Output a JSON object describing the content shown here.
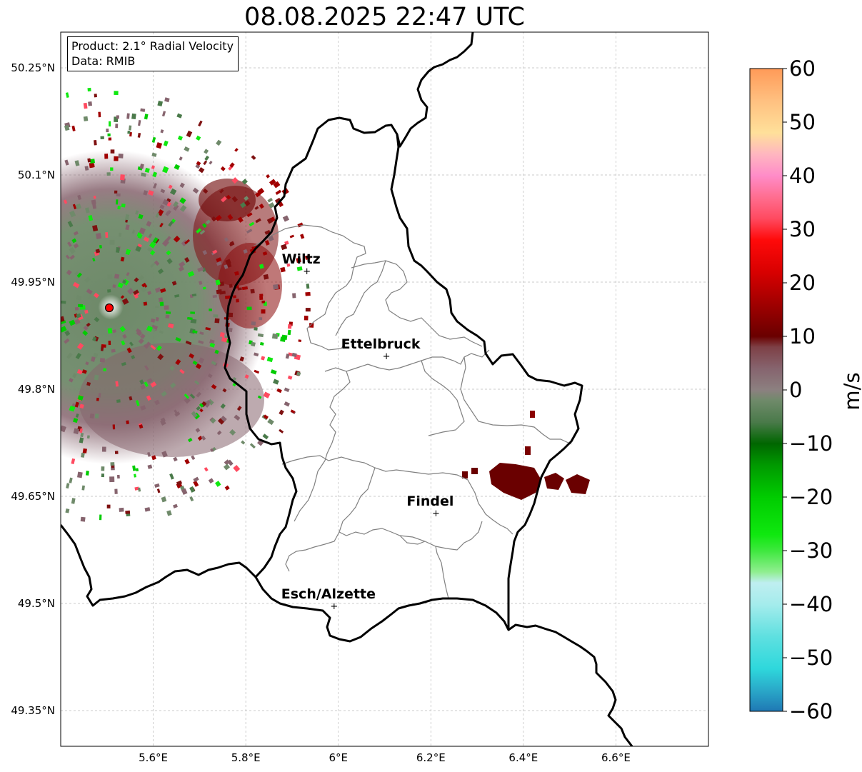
{
  "title": "08.08.2025 22:47 UTC",
  "info": {
    "product": "Product: 2.1° Radial Velocity",
    "data": "Data: RMIB"
  },
  "map": {
    "lon_range": [
      5.4,
      6.8
    ],
    "lat_range": [
      49.3,
      50.3
    ],
    "lon_ticks": [
      {
        "value": 5.6,
        "label": "5.6°E"
      },
      {
        "value": 5.8,
        "label": "5.8°E"
      },
      {
        "value": 6.0,
        "label": "6°E"
      },
      {
        "value": 6.2,
        "label": "6.2°E"
      },
      {
        "value": 6.4,
        "label": "6.4°E"
      },
      {
        "value": 6.6,
        "label": "6.6°E"
      }
    ],
    "lat_ticks": [
      {
        "value": 50.25,
        "label": "50.25°N"
      },
      {
        "value": 50.1,
        "label": "50.1°N"
      },
      {
        "value": 49.95,
        "label": "49.95°N"
      },
      {
        "value": 49.8,
        "label": "49.8°N"
      },
      {
        "value": 49.65,
        "label": "49.65°N"
      },
      {
        "value": 49.5,
        "label": "49.5°N"
      },
      {
        "value": 49.35,
        "label": "49.35°N"
      }
    ],
    "radar_site": {
      "lon": 5.505,
      "lat": 49.914
    },
    "cities": [
      {
        "name": "Wiltz",
        "lon": 5.932,
        "lat": 49.966
      },
      {
        "name": "Ettelbruck",
        "lon": 6.104,
        "lat": 49.847
      },
      {
        "name": "Findel",
        "lon": 6.211,
        "lat": 49.627
      },
      {
        "name": "Esch/Alzette",
        "lon": 5.991,
        "lat": 49.497
      }
    ],
    "border_color": "#000000",
    "canton_color": "#808080",
    "grid_color": "#bbbbbb"
  },
  "colorbar": {
    "label": "m/s",
    "min": -60,
    "max": 60,
    "ticks": [
      {
        "value": 60,
        "label": "60"
      },
      {
        "value": 50,
        "label": "50"
      },
      {
        "value": 40,
        "label": "40"
      },
      {
        "value": 30,
        "label": "30"
      },
      {
        "value": 20,
        "label": "20"
      },
      {
        "value": 10,
        "label": "10"
      },
      {
        "value": 0,
        "label": "0"
      },
      {
        "value": -10,
        "label": "−10"
      },
      {
        "value": -20,
        "label": "−20"
      },
      {
        "value": -30,
        "label": "−30"
      },
      {
        "value": -40,
        "label": "−40"
      },
      {
        "value": -50,
        "label": "−50"
      },
      {
        "value": -60,
        "label": "−60"
      }
    ],
    "stops": [
      {
        "value": -60,
        "color": "#1f78b4"
      },
      {
        "value": -56,
        "color": "#2aa9c9"
      },
      {
        "value": -52,
        "color": "#2ed8dc"
      },
      {
        "value": -46,
        "color": "#5fe0e0"
      },
      {
        "value": -40,
        "color": "#a5ecec"
      },
      {
        "value": -36,
        "color": "#bfeef0"
      },
      {
        "value": -34,
        "color": "#90ee90"
      },
      {
        "value": -30,
        "color": "#3ee83e"
      },
      {
        "value": -27,
        "color": "#0fe80f"
      },
      {
        "value": -20,
        "color": "#00cc00"
      },
      {
        "value": -14,
        "color": "#009900"
      },
      {
        "value": -10,
        "color": "#006600"
      },
      {
        "value": -6,
        "color": "#4a7a4a"
      },
      {
        "value": -2,
        "color": "#6f8a6a"
      },
      {
        "value": 0,
        "color": "#8c8080"
      },
      {
        "value": 4,
        "color": "#86646e"
      },
      {
        "value": 8,
        "color": "#7e4046"
      },
      {
        "value": 10,
        "color": "#6a0000"
      },
      {
        "value": 16,
        "color": "#a00000"
      },
      {
        "value": 22,
        "color": "#d80000"
      },
      {
        "value": 28,
        "color": "#ff0a0a"
      },
      {
        "value": 32,
        "color": "#ff4a60"
      },
      {
        "value": 36,
        "color": "#ff6e90"
      },
      {
        "value": 40,
        "color": "#ff8cc8"
      },
      {
        "value": 44,
        "color": "#ffb6c0"
      },
      {
        "value": 48,
        "color": "#ffe09a"
      },
      {
        "value": 54,
        "color": "#ffc080"
      },
      {
        "value": 60,
        "color": "#ff9a58"
      }
    ]
  }
}
